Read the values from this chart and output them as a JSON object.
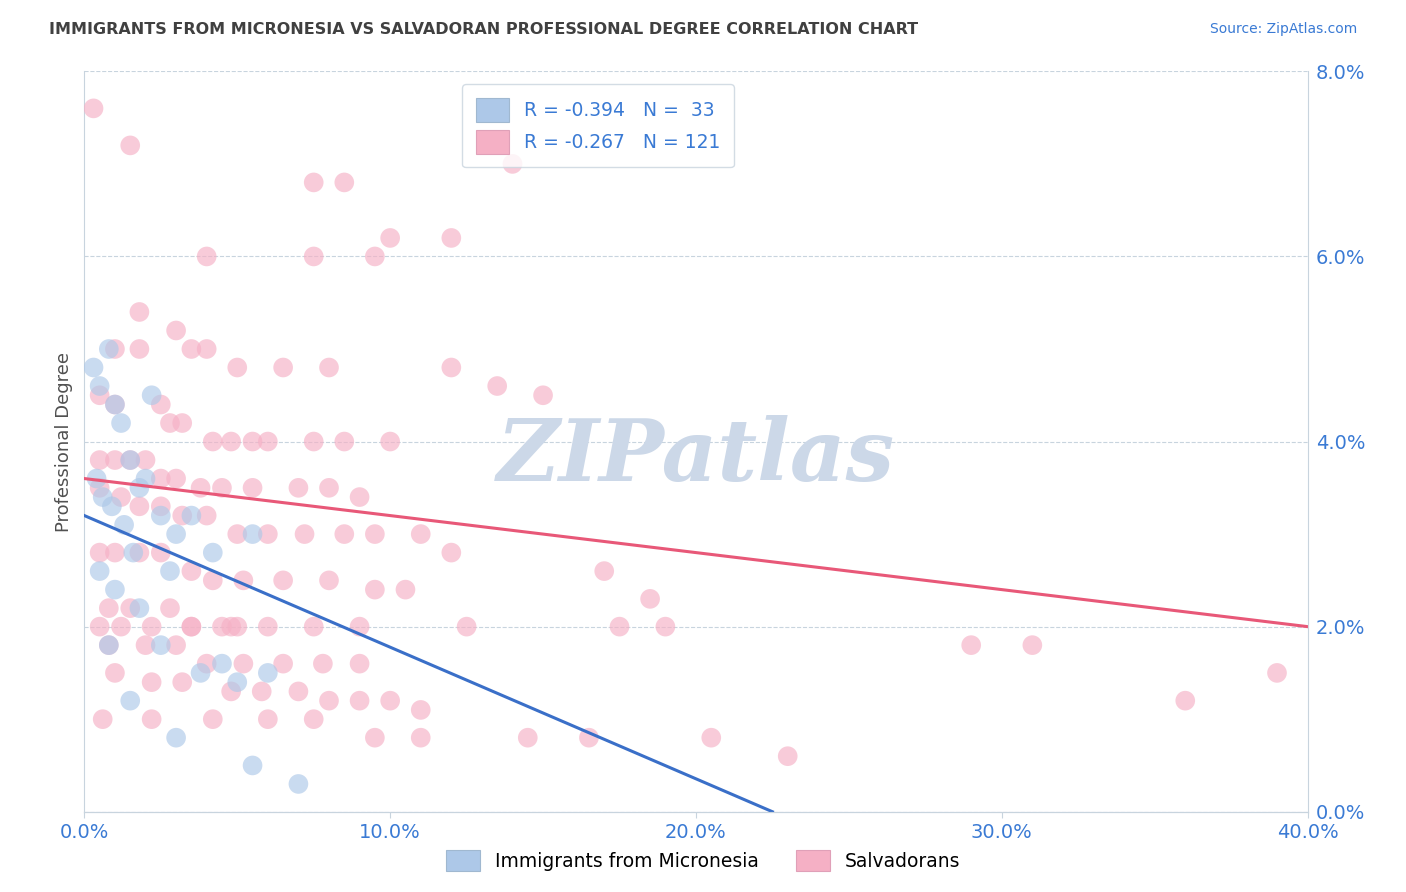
{
  "title": "IMMIGRANTS FROM MICRONESIA VS SALVADORAN PROFESSIONAL DEGREE CORRELATION CHART",
  "source": "Source: ZipAtlas.com",
  "ylabel": "Professional Degree",
  "ytick_values": [
    0.0,
    2.0,
    4.0,
    6.0,
    8.0
  ],
  "xtick_values": [
    0.0,
    10.0,
    20.0,
    30.0,
    40.0
  ],
  "xlim": [
    0.0,
    40.0
  ],
  "ylim": [
    -0.3,
    8.5
  ],
  "ylim_data": [
    0.0,
    8.0
  ],
  "legend_line1": "R = -0.394   N =  33",
  "legend_line2": "R = -0.267   N = 121",
  "blue_color": "#adc8e8",
  "pink_color": "#f5b0c5",
  "blue_line_color": "#3a6fc8",
  "pink_line_color": "#e85878",
  "watermark": "ZIPatlas",
  "watermark_color": "#ccd8e8",
  "grid_color": "#c8d4de",
  "title_color": "#404040",
  "axis_label_color": "#3a7ad4",
  "bottom_legend_1": "Immigrants from Micronesia",
  "bottom_legend_2": "Salvadorans",
  "blue_scatter": [
    [
      0.3,
      4.8
    ],
    [
      0.5,
      4.6
    ],
    [
      0.8,
      5.0
    ],
    [
      1.0,
      4.4
    ],
    [
      1.2,
      4.2
    ],
    [
      1.5,
      3.8
    ],
    [
      1.8,
      3.5
    ],
    [
      2.0,
      3.6
    ],
    [
      2.2,
      4.5
    ],
    [
      2.5,
      3.2
    ],
    [
      3.0,
      3.0
    ],
    [
      3.5,
      3.2
    ],
    [
      0.4,
      3.6
    ],
    [
      0.6,
      3.4
    ],
    [
      0.9,
      3.3
    ],
    [
      1.3,
      3.1
    ],
    [
      1.6,
      2.8
    ],
    [
      2.8,
      2.6
    ],
    [
      4.2,
      2.8
    ],
    [
      5.5,
      3.0
    ],
    [
      0.5,
      2.6
    ],
    [
      1.0,
      2.4
    ],
    [
      1.8,
      2.2
    ],
    [
      2.5,
      1.8
    ],
    [
      3.8,
      1.5
    ],
    [
      4.5,
      1.6
    ],
    [
      5.0,
      1.4
    ],
    [
      6.0,
      1.5
    ],
    [
      0.8,
      1.8
    ],
    [
      1.5,
      1.2
    ],
    [
      3.0,
      0.8
    ],
    [
      5.5,
      0.5
    ],
    [
      7.0,
      0.3
    ]
  ],
  "pink_scatter": [
    [
      0.3,
      7.6
    ],
    [
      1.5,
      7.2
    ],
    [
      14.0,
      7.0
    ],
    [
      8.5,
      6.8
    ],
    [
      7.5,
      6.8
    ],
    [
      10.0,
      6.2
    ],
    [
      9.5,
      6.0
    ],
    [
      4.0,
      6.0
    ],
    [
      12.0,
      6.2
    ],
    [
      7.5,
      6.0
    ],
    [
      1.8,
      5.4
    ],
    [
      3.0,
      5.2
    ],
    [
      1.0,
      5.0
    ],
    [
      1.8,
      5.0
    ],
    [
      3.5,
      5.0
    ],
    [
      4.0,
      5.0
    ],
    [
      5.0,
      4.8
    ],
    [
      6.5,
      4.8
    ],
    [
      8.0,
      4.8
    ],
    [
      12.0,
      4.8
    ],
    [
      13.5,
      4.6
    ],
    [
      15.0,
      4.5
    ],
    [
      0.5,
      4.5
    ],
    [
      1.0,
      4.4
    ],
    [
      2.5,
      4.4
    ],
    [
      2.8,
      4.2
    ],
    [
      3.2,
      4.2
    ],
    [
      4.2,
      4.0
    ],
    [
      4.8,
      4.0
    ],
    [
      5.5,
      4.0
    ],
    [
      6.0,
      4.0
    ],
    [
      7.5,
      4.0
    ],
    [
      8.5,
      4.0
    ],
    [
      10.0,
      4.0
    ],
    [
      0.5,
      3.8
    ],
    [
      1.0,
      3.8
    ],
    [
      1.5,
      3.8
    ],
    [
      2.0,
      3.8
    ],
    [
      2.5,
      3.6
    ],
    [
      3.0,
      3.6
    ],
    [
      3.8,
      3.5
    ],
    [
      4.5,
      3.5
    ],
    [
      5.5,
      3.5
    ],
    [
      7.0,
      3.5
    ],
    [
      8.0,
      3.5
    ],
    [
      9.0,
      3.4
    ],
    [
      1.2,
      3.4
    ],
    [
      1.8,
      3.3
    ],
    [
      2.5,
      3.3
    ],
    [
      3.2,
      3.2
    ],
    [
      4.0,
      3.2
    ],
    [
      5.0,
      3.0
    ],
    [
      6.0,
      3.0
    ],
    [
      7.2,
      3.0
    ],
    [
      8.5,
      3.0
    ],
    [
      9.5,
      3.0
    ],
    [
      11.0,
      3.0
    ],
    [
      12.0,
      2.8
    ],
    [
      0.5,
      2.8
    ],
    [
      1.0,
      2.8
    ],
    [
      1.8,
      2.8
    ],
    [
      2.5,
      2.8
    ],
    [
      3.5,
      2.6
    ],
    [
      4.2,
      2.5
    ],
    [
      5.2,
      2.5
    ],
    [
      6.5,
      2.5
    ],
    [
      8.0,
      2.5
    ],
    [
      9.5,
      2.4
    ],
    [
      10.5,
      2.4
    ],
    [
      0.8,
      2.2
    ],
    [
      1.5,
      2.2
    ],
    [
      2.8,
      2.2
    ],
    [
      3.5,
      2.0
    ],
    [
      4.5,
      2.0
    ],
    [
      5.0,
      2.0
    ],
    [
      0.5,
      2.0
    ],
    [
      1.2,
      2.0
    ],
    [
      2.2,
      2.0
    ],
    [
      3.5,
      2.0
    ],
    [
      4.8,
      2.0
    ],
    [
      6.0,
      2.0
    ],
    [
      7.5,
      2.0
    ],
    [
      9.0,
      2.0
    ],
    [
      12.5,
      2.0
    ],
    [
      17.5,
      2.0
    ],
    [
      19.0,
      2.0
    ],
    [
      0.8,
      1.8
    ],
    [
      2.0,
      1.8
    ],
    [
      3.0,
      1.8
    ],
    [
      4.0,
      1.6
    ],
    [
      5.2,
      1.6
    ],
    [
      6.5,
      1.6
    ],
    [
      7.8,
      1.6
    ],
    [
      9.0,
      1.6
    ],
    [
      1.0,
      1.5
    ],
    [
      2.2,
      1.4
    ],
    [
      3.2,
      1.4
    ],
    [
      4.8,
      1.3
    ],
    [
      5.8,
      1.3
    ],
    [
      7.0,
      1.3
    ],
    [
      8.0,
      1.2
    ],
    [
      9.0,
      1.2
    ],
    [
      10.0,
      1.2
    ],
    [
      11.0,
      1.1
    ],
    [
      0.6,
      1.0
    ],
    [
      2.2,
      1.0
    ],
    [
      4.2,
      1.0
    ],
    [
      6.0,
      1.0
    ],
    [
      7.5,
      1.0
    ],
    [
      9.5,
      0.8
    ],
    [
      11.0,
      0.8
    ],
    [
      14.5,
      0.8
    ],
    [
      16.5,
      0.8
    ],
    [
      20.5,
      0.8
    ],
    [
      23.0,
      0.6
    ],
    [
      29.0,
      1.8
    ],
    [
      31.0,
      1.8
    ],
    [
      36.0,
      1.2
    ],
    [
      39.0,
      1.5
    ],
    [
      0.5,
      3.5
    ],
    [
      17.0,
      2.6
    ],
    [
      18.5,
      2.3
    ]
  ],
  "blue_regression": {
    "x_start": 0.0,
    "y_start": 3.2,
    "x_end": 22.5,
    "y_end": 0.0
  },
  "pink_regression": {
    "x_start": 0.0,
    "y_start": 3.6,
    "x_end": 40.0,
    "y_end": 2.0
  }
}
